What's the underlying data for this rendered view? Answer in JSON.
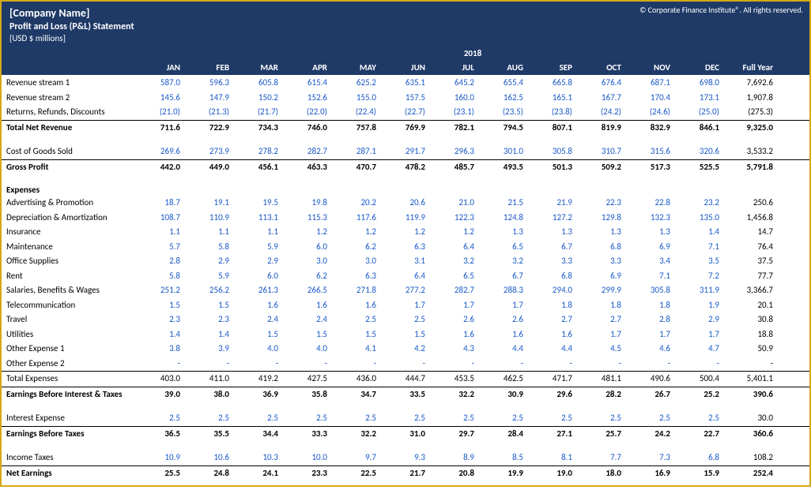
{
  "header": {
    "company": "[Company Name]",
    "subtitle": "Profit and Loss (P&L) Statement",
    "units": "[USD $ millions]",
    "copyright": "© Corporate Finance Institute®. All rights reserved."
  },
  "period": {
    "year": "2018"
  },
  "months": [
    "JAN",
    "FEB",
    "MAR",
    "APR",
    "MAY",
    "JUN",
    "JUL",
    "AUG",
    "SEP",
    "OCT",
    "NOV",
    "DEC"
  ],
  "full_year_label": "Full Year",
  "rows": {
    "rev1": {
      "label": "Revenue stream 1",
      "vals": [
        "587.0",
        "596.3",
        "605.8",
        "615.4",
        "625.2",
        "635.1",
        "645.2",
        "655.4",
        "665.8",
        "676.4",
        "687.1",
        "698.0"
      ],
      "fy": "7,692.6"
    },
    "rev2": {
      "label": "Revenue stream 2",
      "vals": [
        "145.6",
        "147.9",
        "150.2",
        "152.6",
        "155.0",
        "157.5",
        "160.0",
        "162.5",
        "165.1",
        "167.7",
        "170.4",
        "173.1"
      ],
      "fy": "1,907.8"
    },
    "returns": {
      "label": "Returns, Refunds, Discounts",
      "vals": [
        "(21.0)",
        "(21.3)",
        "(21.7)",
        "(22.0)",
        "(22.4)",
        "(22.7)",
        "(23.1)",
        "(23.5)",
        "(23.8)",
        "(24.2)",
        "(24.6)",
        "(25.0)"
      ],
      "fy": "(275.3)"
    },
    "netrev": {
      "label": "Total Net Revenue",
      "vals": [
        "711.6",
        "722.9",
        "734.3",
        "746.0",
        "757.8",
        "769.9",
        "782.1",
        "794.5",
        "807.1",
        "819.9",
        "832.9",
        "846.1"
      ],
      "fy": "9,325.0"
    },
    "cogs": {
      "label": "Cost of Goods Sold",
      "vals": [
        "269.6",
        "273.9",
        "278.2",
        "282.7",
        "287.1",
        "291.7",
        "296.3",
        "301.0",
        "305.8",
        "310.7",
        "315.6",
        "320.6"
      ],
      "fy": "3,533.2"
    },
    "gross": {
      "label": "Gross Profit",
      "vals": [
        "442.0",
        "449.0",
        "456.1",
        "463.3",
        "470.7",
        "478.2",
        "485.7",
        "493.5",
        "501.3",
        "509.2",
        "517.3",
        "525.5"
      ],
      "fy": "5,791.8"
    },
    "expenses_header": "Expenses",
    "adv": {
      "label": "Advertising & Promotion",
      "vals": [
        "18.7",
        "19.1",
        "19.5",
        "19.8",
        "20.2",
        "20.6",
        "21.0",
        "21.5",
        "21.9",
        "22.3",
        "22.8",
        "23.2"
      ],
      "fy": "250.6"
    },
    "dep": {
      "label": "Depreciation & Amortization",
      "vals": [
        "108.7",
        "110.9",
        "113.1",
        "115.3",
        "117.6",
        "119.9",
        "122.3",
        "124.8",
        "127.2",
        "129.8",
        "132.3",
        "135.0"
      ],
      "fy": "1,456.8"
    },
    "ins": {
      "label": "Insurance",
      "vals": [
        "1.1",
        "1.1",
        "1.1",
        "1.2",
        "1.2",
        "1.2",
        "1.2",
        "1.3",
        "1.3",
        "1.3",
        "1.3",
        "1.4"
      ],
      "fy": "14.7"
    },
    "maint": {
      "label": "Maintenance",
      "vals": [
        "5.7",
        "5.8",
        "5.9",
        "6.0",
        "6.2",
        "6.3",
        "6.4",
        "6.5",
        "6.7",
        "6.8",
        "6.9",
        "7.1"
      ],
      "fy": "76.4"
    },
    "office": {
      "label": "Office Supplies",
      "vals": [
        "2.8",
        "2.9",
        "2.9",
        "3.0",
        "3.0",
        "3.1",
        "3.2",
        "3.2",
        "3.3",
        "3.3",
        "3.4",
        "3.5"
      ],
      "fy": "37.5"
    },
    "rent": {
      "label": "Rent",
      "vals": [
        "5.8",
        "5.9",
        "6.0",
        "6.2",
        "6.3",
        "6.4",
        "6.5",
        "6.7",
        "6.8",
        "6.9",
        "7.1",
        "7.2"
      ],
      "fy": "77.7"
    },
    "sal": {
      "label": "Salaries, Benefits & Wages",
      "vals": [
        "251.2",
        "256.2",
        "261.3",
        "266.5",
        "271.8",
        "277.2",
        "282.7",
        "288.3",
        "294.0",
        "299.9",
        "305.8",
        "311.9"
      ],
      "fy": "3,366.7"
    },
    "tel": {
      "label": "Telecommunication",
      "vals": [
        "1.5",
        "1.5",
        "1.6",
        "1.6",
        "1.6",
        "1.7",
        "1.7",
        "1.7",
        "1.8",
        "1.8",
        "1.8",
        "1.9"
      ],
      "fy": "20.1"
    },
    "travel": {
      "label": "Travel",
      "vals": [
        "2.3",
        "2.3",
        "2.4",
        "2.4",
        "2.5",
        "2.5",
        "2.6",
        "2.6",
        "2.7",
        "2.7",
        "2.8",
        "2.9"
      ],
      "fy": "30.8"
    },
    "util": {
      "label": "Utilities",
      "vals": [
        "1.4",
        "1.4",
        "1.5",
        "1.5",
        "1.5",
        "1.5",
        "1.6",
        "1.6",
        "1.6",
        "1.7",
        "1.7",
        "1.7"
      ],
      "fy": "18.8"
    },
    "oth1": {
      "label": "Other Expense 1",
      "vals": [
        "3.8",
        "3.9",
        "4.0",
        "4.0",
        "4.1",
        "4.2",
        "4.3",
        "4.4",
        "4.4",
        "4.5",
        "4.6",
        "4.7"
      ],
      "fy": "50.9"
    },
    "oth2": {
      "label": "Other Expense 2",
      "vals": [
        "-",
        "-",
        "-",
        "-",
        "-",
        "-",
        "-",
        "-",
        "-",
        "-",
        "-",
        "-"
      ],
      "fy": "-"
    },
    "totexp": {
      "label": "Total Expenses",
      "vals": [
        "403.0",
        "411.0",
        "419.2",
        "427.5",
        "436.0",
        "444.7",
        "453.5",
        "462.5",
        "471.7",
        "481.1",
        "490.6",
        "500.4"
      ],
      "fy": "5,401.1"
    },
    "ebit": {
      "label": "Earnings Before Interest & Taxes",
      "vals": [
        "39.0",
        "38.0",
        "36.9",
        "35.8",
        "34.7",
        "33.5",
        "32.2",
        "30.9",
        "29.6",
        "28.2",
        "26.7",
        "25.2"
      ],
      "fy": "390.6"
    },
    "intexp": {
      "label": "Interest Expense",
      "vals": [
        "2.5",
        "2.5",
        "2.5",
        "2.5",
        "2.5",
        "2.5",
        "2.5",
        "2.5",
        "2.5",
        "2.5",
        "2.5",
        "2.5"
      ],
      "fy": "30.0"
    },
    "ebt": {
      "label": "Earnings Before Taxes",
      "vals": [
        "36.5",
        "35.5",
        "34.4",
        "33.3",
        "32.2",
        "31.0",
        "29.7",
        "28.4",
        "27.1",
        "25.7",
        "24.2",
        "22.7"
      ],
      "fy": "360.6"
    },
    "tax": {
      "label": "Income Taxes",
      "vals": [
        "10.9",
        "10.6",
        "10.3",
        "10.0",
        "9.7",
        "9.3",
        "8.9",
        "8.5",
        "8.1",
        "7.7",
        "7.3",
        "6.8"
      ],
      "fy": "108.2"
    },
    "net": {
      "label": "Net Earnings",
      "vals": [
        "25.5",
        "24.8",
        "24.1",
        "23.3",
        "22.5",
        "21.7",
        "20.8",
        "19.9",
        "19.0",
        "18.0",
        "16.9",
        "15.9"
      ],
      "fy": "252.4"
    }
  },
  "colors": {
    "header_bg": "#1f3a67",
    "data_blue": "#1757c7",
    "border_gold": "#d4a816"
  }
}
